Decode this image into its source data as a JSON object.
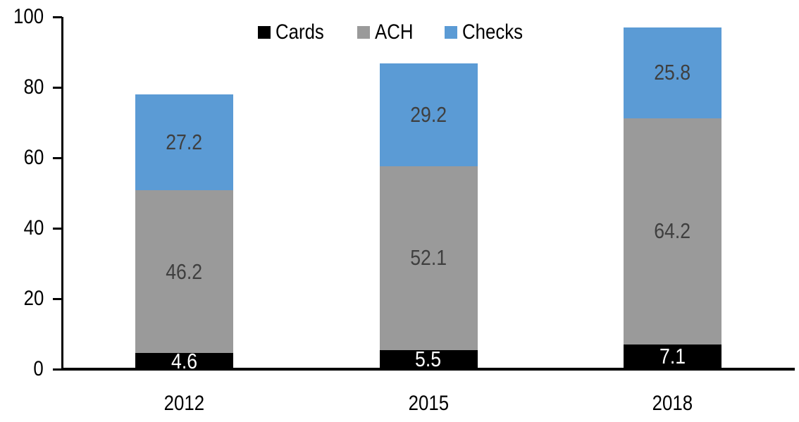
{
  "chart": {
    "background": "#FFFFFF",
    "axis_color": "#000000",
    "tick_label_color": "#000000",
    "data_label_color_on_light": "#3F3F3F",
    "data_label_color_on_dark": "#FFFFFF"
  },
  "chart_data": {
    "type": "bar",
    "stacked": true,
    "title": "",
    "xlabel": "",
    "ylabel": "",
    "categories": [
      "2012",
      "2015",
      "2018"
    ],
    "series": [
      {
        "name": "Cards",
        "color": "#000000",
        "label_color": "#FFFFFF",
        "values": [
          4.6,
          5.5,
          7.1
        ]
      },
      {
        "name": "ACH",
        "color": "#9A9A9A",
        "label_color": "#3F3F3F",
        "values": [
          46.2,
          52.1,
          64.2
        ]
      },
      {
        "name": "Checks",
        "color": "#5B9BD5",
        "label_color": "#3F3F3F",
        "values": [
          27.2,
          29.2,
          25.8
        ]
      }
    ],
    "totals": [
      78.0,
      86.8,
      97.1
    ],
    "ylim": [
      0,
      100
    ],
    "yticks": [
      0,
      20,
      40,
      60,
      80,
      100
    ],
    "grid": false,
    "legend_position": "top"
  }
}
